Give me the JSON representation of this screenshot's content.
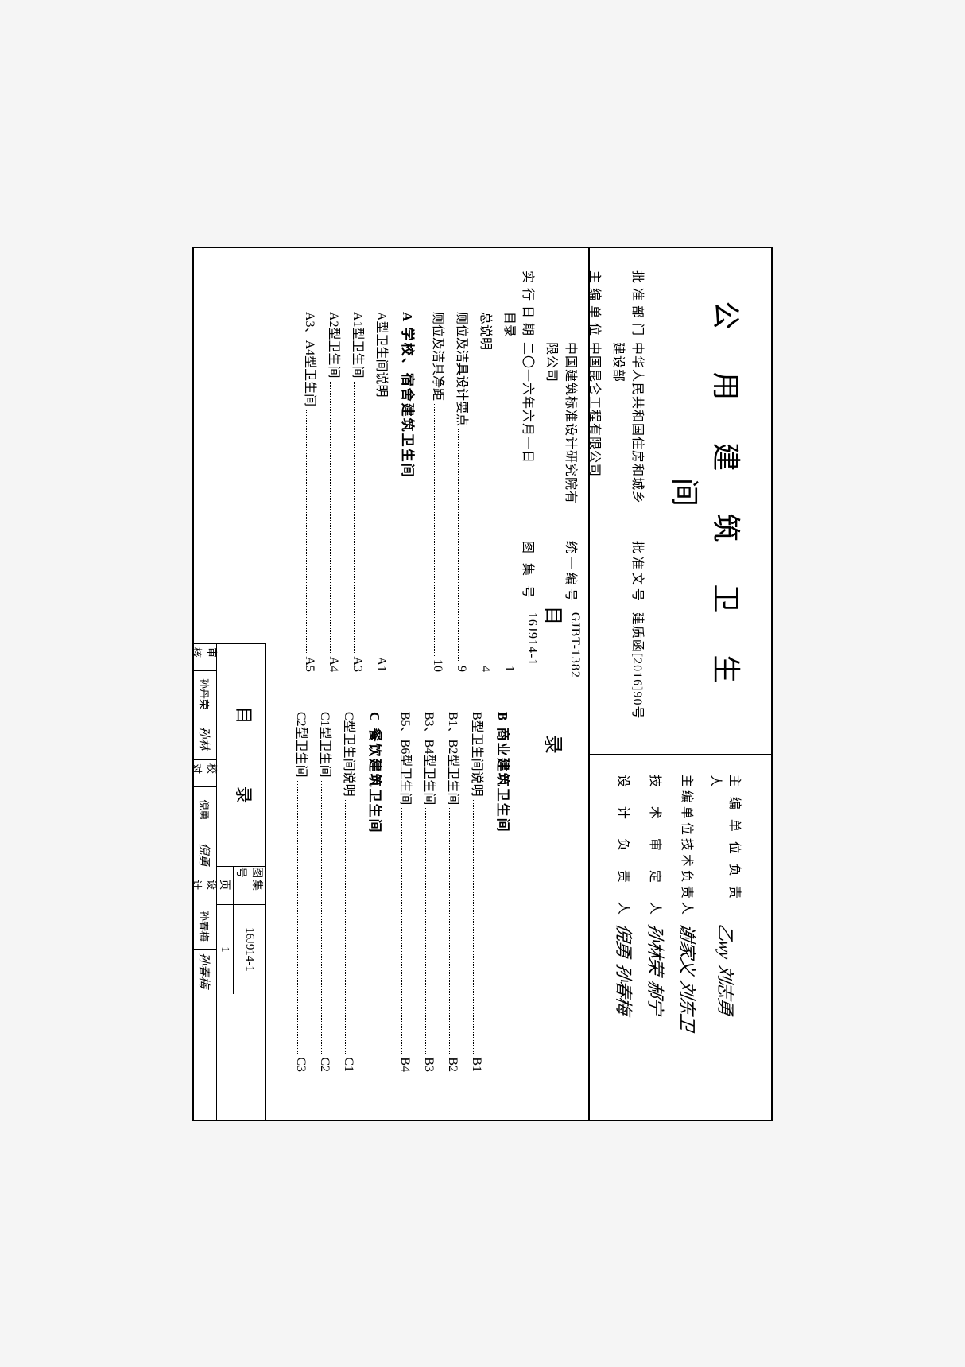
{
  "main_title": "公 用 建 筑 卫 生 间",
  "info": {
    "approve_dept_label": "批准部门",
    "approve_dept": "中华人民共和国住房和城乡建设部",
    "approve_doc_label": "批准文号",
    "approve_doc": "建质函[2016]90号",
    "editor_org_label": "主编单位",
    "editor_org_1": "中国昆仑工程有限公司",
    "editor_org_2": "中国建筑标准设计研究院有限公司",
    "unified_no_label": "统一编号",
    "unified_no": "GJBT-1382",
    "exec_date_label": "实行日期",
    "exec_date": "二〇一六年六月一日",
    "atlas_no_label": "图 集 号",
    "atlas_no": "16J914-1"
  },
  "signers": {
    "s1_label": "主 编 单 位 负 责 人",
    "s1_sig1": "乙wy",
    "s1_sig2": "刘志勇",
    "s2_label": "主编单位技术负责人",
    "s2_sig1": "谢家义",
    "s2_sig2": "刘东卫",
    "s3_label": "技　术　审　定　人",
    "s3_sig1": "孙林荣",
    "s3_sig2": "郝宁",
    "s4_label": "设　计　负　责　人",
    "s4_sig1": "倪勇",
    "s4_sig2": "孙春梅"
  },
  "toc_title": "目　　录",
  "toc_left": [
    {
      "heading": "",
      "items": [
        {
          "label": "目录",
          "page": "1"
        },
        {
          "label": "总说明",
          "page": "4"
        },
        {
          "label": "厕位及洁具设计要点",
          "page": "9"
        },
        {
          "label": "厕位及洁具净距",
          "page": "10"
        }
      ]
    },
    {
      "heading": "A 学校、宿舍建筑卫生间",
      "items": [
        {
          "label": "A型卫生间说明",
          "page": "A1"
        },
        {
          "label": "A1型卫生间",
          "page": "A3"
        },
        {
          "label": "A2型卫生间",
          "page": "A4"
        },
        {
          "label": "A3、A4型卫生间",
          "page": "A5"
        }
      ]
    }
  ],
  "toc_right": [
    {
      "heading": "B 商业建筑卫生间",
      "items": [
        {
          "label": "B型卫生间说明",
          "page": "B1"
        },
        {
          "label": "B1、B2型卫生间",
          "page": "B2"
        },
        {
          "label": "B3、B4型卫生间",
          "page": "B3"
        },
        {
          "label": "B5、B6型卫生间",
          "page": "B4"
        }
      ]
    },
    {
      "heading": "C 餐饮建筑卫生间",
      "items": [
        {
          "label": "C型卫生间说明",
          "page": "C1"
        },
        {
          "label": "C1型卫生间",
          "page": "C2"
        },
        {
          "label": "C2型卫生间",
          "page": "C3"
        }
      ]
    }
  ],
  "footer": {
    "title": "目　录",
    "atlas_label": "图集号",
    "atlas_val": "16J914-1",
    "page_label": "页",
    "page_val": "1",
    "cells": [
      {
        "label": "审核",
        "val": "孙丹荣"
      },
      {
        "sig": "孙林"
      },
      {
        "label": "校对",
        "val": "倪勇"
      },
      {
        "sig": "倪勇"
      },
      {
        "label": "设计",
        "val": "孙春梅"
      },
      {
        "sig": "孙春梅"
      }
    ]
  },
  "colors": {
    "border": "#000000",
    "text": "#000000",
    "background": "#ffffff"
  }
}
